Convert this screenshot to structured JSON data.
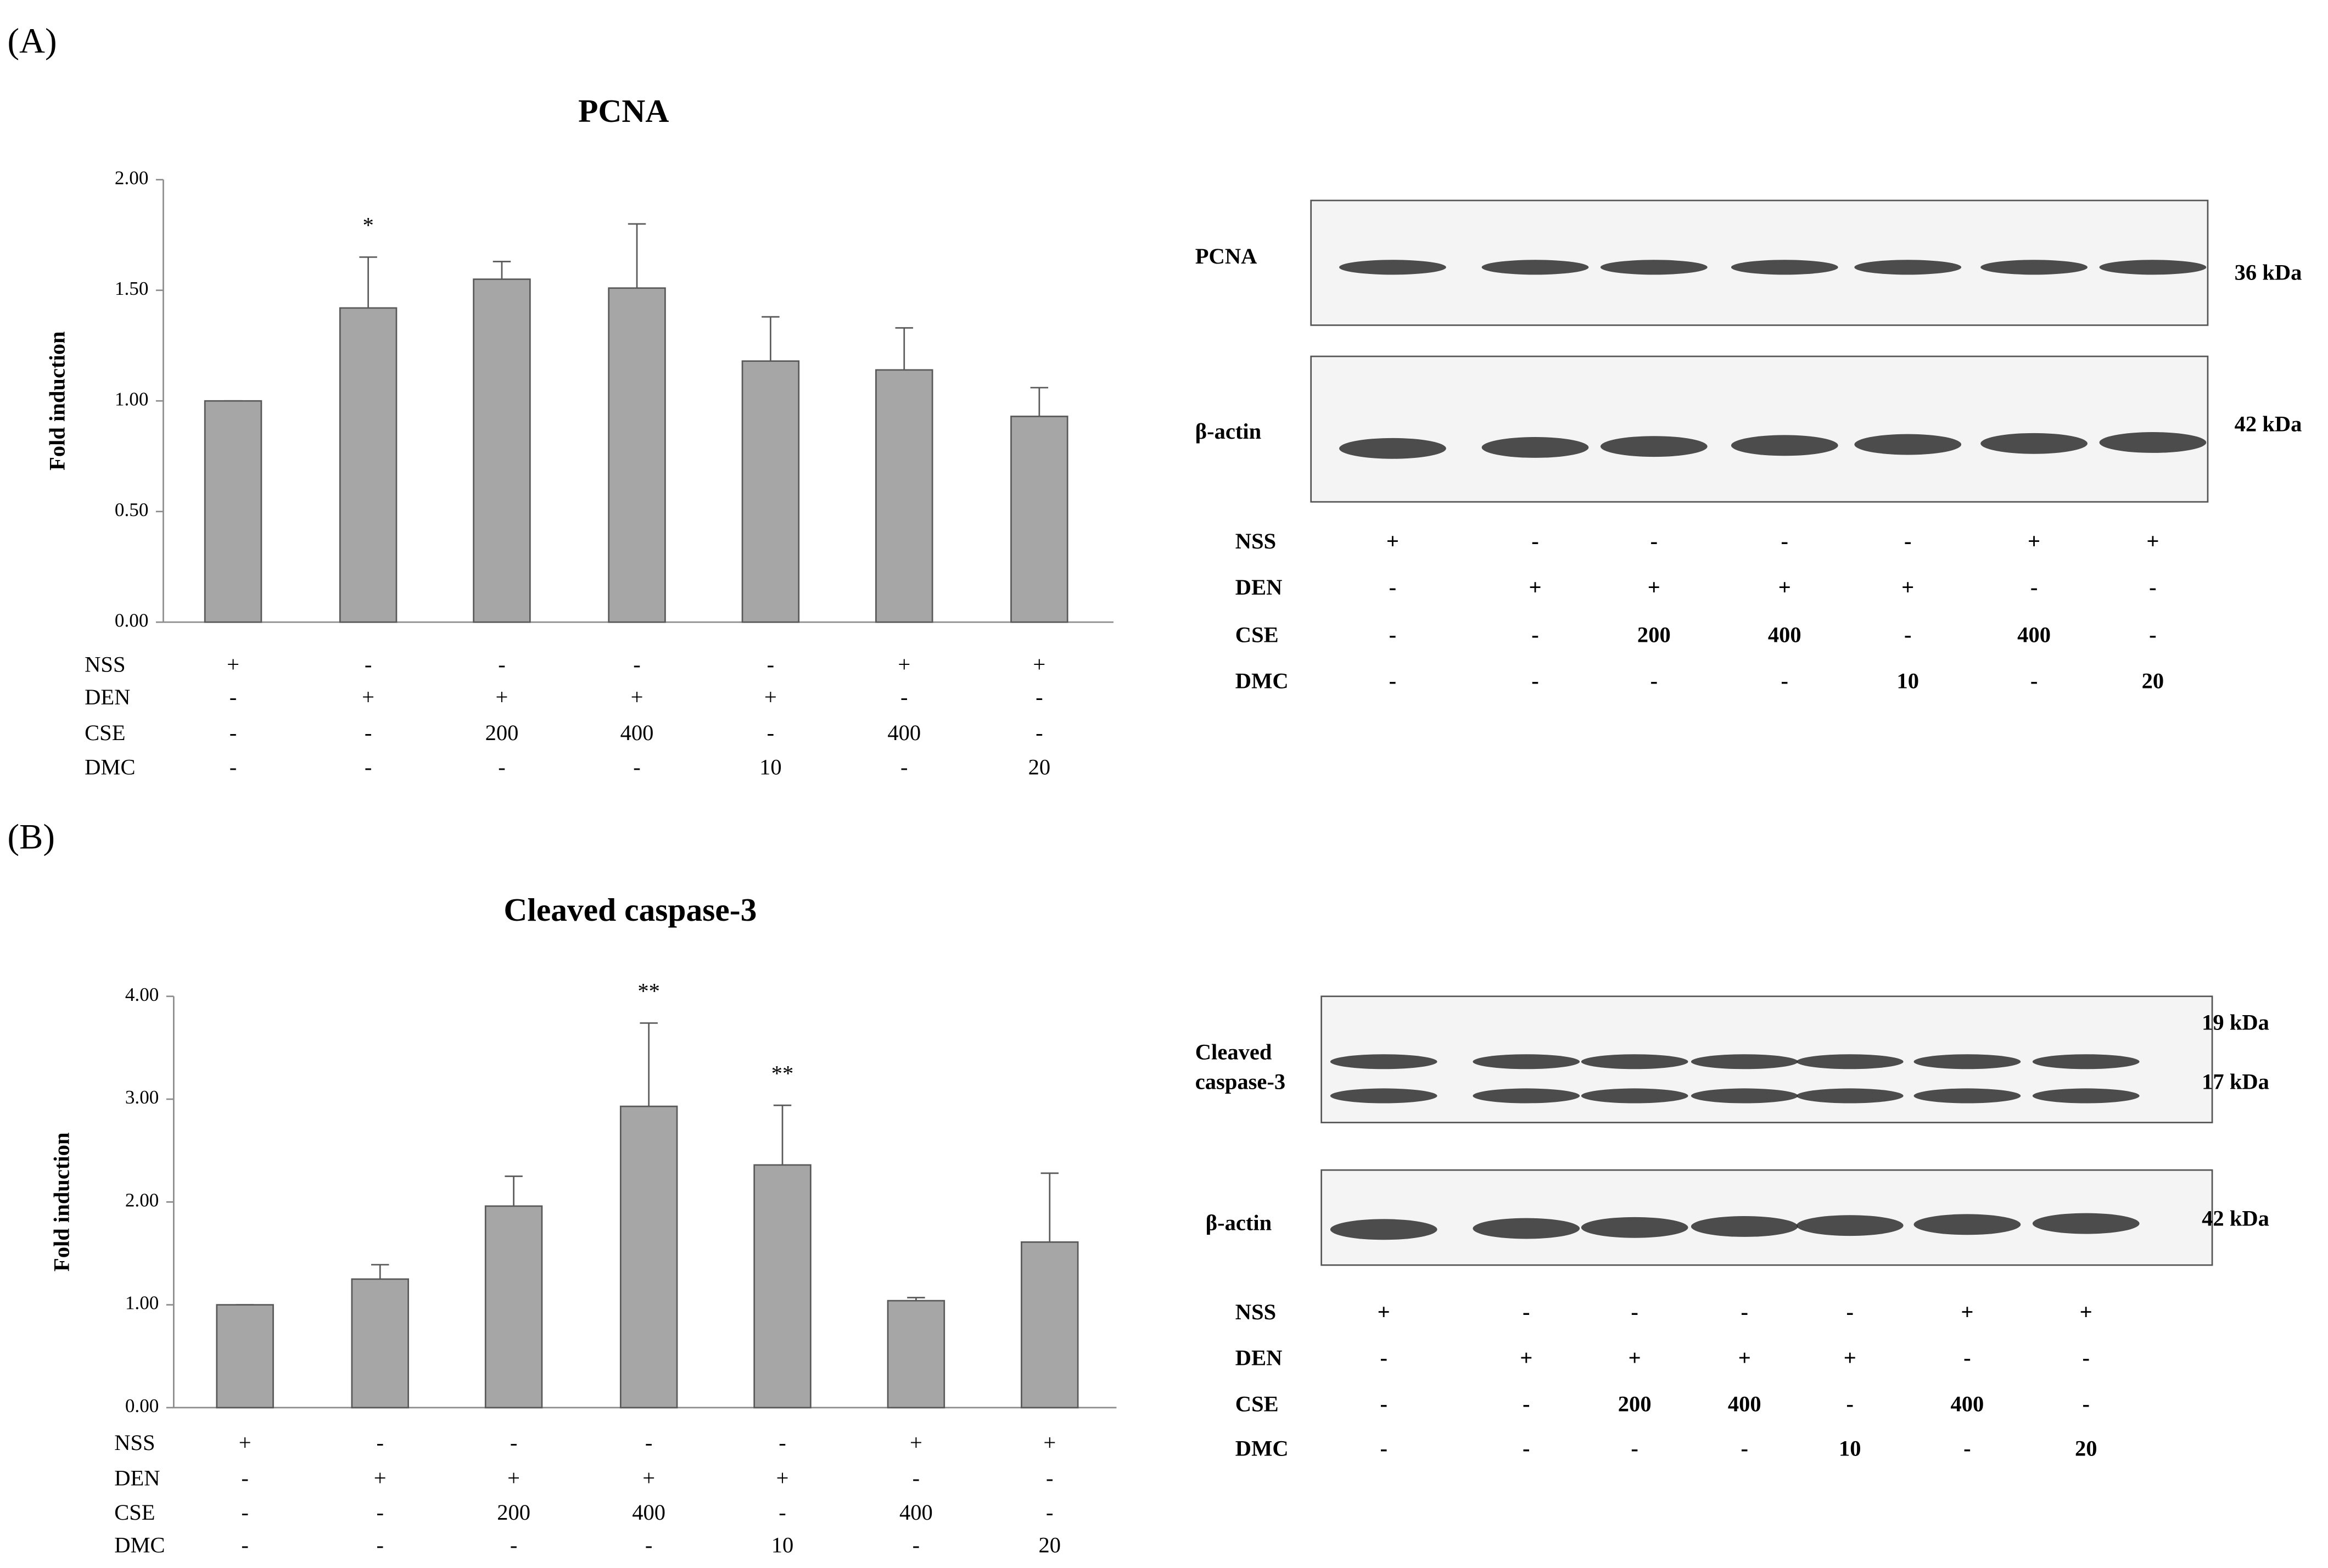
{
  "chart_data": [
    {
      "type": "bar",
      "panel": "(A)",
      "title": "PCNA",
      "y_label": "Fold induction",
      "values": [
        1.0,
        1.42,
        1.55,
        1.51,
        1.18,
        1.14,
        0.93
      ],
      "errors": [
        0,
        0.23,
        0.08,
        0.29,
        0.2,
        0.19,
        0.13
      ],
      "significance": [
        null,
        "*",
        null,
        null,
        null,
        null,
        null
      ],
      "color": "#a6a6a6",
      "ylim": [
        0,
        2
      ],
      "yticks": [
        {
          "value": 0,
          "label": "0.00"
        },
        {
          "value": 0.5,
          "label": "0.50"
        },
        {
          "value": 1,
          "label": "1.00"
        },
        {
          "value": 1.5,
          "label": "1.50"
        },
        {
          "value": 2,
          "label": "2.00"
        }
      ],
      "conditions": [
        {
          "name": "NSS",
          "values": [
            "+",
            "-",
            "-",
            "-",
            "-",
            "+",
            "+"
          ]
        },
        {
          "name": "DEN",
          "values": [
            "-",
            "+",
            "+",
            "+",
            "+",
            "-",
            "-"
          ]
        },
        {
          "name": "CSE",
          "values": [
            "-",
            "-",
            "200",
            "400",
            "-",
            "400",
            "-"
          ]
        },
        {
          "name": "DMC",
          "values": [
            "-",
            "-",
            "-",
            "-",
            "10",
            "-",
            "20"
          ]
        }
      ]
    },
    {
      "type": "bar",
      "panel": "(B)",
      "title": "Cleaved caspase-3",
      "y_label": "Fold induction",
      "values": [
        1.0,
        1.25,
        1.96,
        2.93,
        2.36,
        1.04,
        1.61
      ],
      "errors": [
        0,
        0.14,
        0.29,
        0.81,
        0.58,
        0.03,
        0.67
      ],
      "significance": [
        null,
        null,
        null,
        "**",
        "**",
        null,
        null
      ],
      "color": "#a6a6a6",
      "ylim": [
        0,
        4
      ],
      "yticks": [
        {
          "value": 0,
          "label": "0.00"
        },
        {
          "value": 1,
          "label": "1.00"
        },
        {
          "value": 2,
          "label": "2.00"
        },
        {
          "value": 3,
          "label": "3.00"
        },
        {
          "value": 4,
          "label": "4.00"
        }
      ],
      "conditions": [
        {
          "name": "NSS",
          "values": [
            "+",
            "-",
            "-",
            "-",
            "-",
            "+",
            "+"
          ]
        },
        {
          "name": "DEN",
          "values": [
            "-",
            "+",
            "+",
            "+",
            "+",
            "-",
            "-"
          ]
        },
        {
          "name": "CSE",
          "values": [
            "-",
            "-",
            "200",
            "400",
            "-",
            "400",
            "-"
          ]
        },
        {
          "name": "DMC",
          "values": [
            "-",
            "-",
            "-",
            "-",
            "10",
            "-",
            "20"
          ]
        }
      ]
    }
  ],
  "blots": [
    {
      "rows": [
        {
          "label": [
            "PCNA"
          ],
          "kda": [
            "36 kDa"
          ]
        },
        {
          "label": [
            "β-actin"
          ],
          "kda": [
            "42 kDa"
          ]
        }
      ],
      "conditions": [
        {
          "name": "NSS",
          "values": [
            "+",
            "-",
            "-",
            "-",
            "-",
            "+",
            "+"
          ]
        },
        {
          "name": "DEN",
          "values": [
            "-",
            "+",
            "+",
            "+",
            "+",
            "-",
            "-"
          ]
        },
        {
          "name": "CSE",
          "values": [
            "-",
            "-",
            "200",
            "400",
            "-",
            "400",
            "-"
          ]
        },
        {
          "name": "DMC",
          "values": [
            "-",
            "-",
            "-",
            "-",
            "10",
            "-",
            "20"
          ]
        }
      ]
    },
    {
      "rows": [
        {
          "label": [
            "Cleaved",
            "caspase-3"
          ],
          "kda": [
            "19 kDa",
            "17 kDa"
          ]
        },
        {
          "label": [
            "β-actin"
          ],
          "kda": [
            "42 kDa"
          ]
        }
      ],
      "conditions": [
        {
          "name": "NSS",
          "values": [
            "+",
            "-",
            "-",
            "-",
            "-",
            "+",
            "+"
          ]
        },
        {
          "name": "DEN",
          "values": [
            "-",
            "+",
            "+",
            "+",
            "+",
            "-",
            "-"
          ]
        },
        {
          "name": "CSE",
          "values": [
            "-",
            "-",
            "200",
            "400",
            "-",
            "400",
            "-"
          ]
        },
        {
          "name": "DMC",
          "values": [
            "-",
            "-",
            "-",
            "-",
            "10",
            "-",
            "20"
          ]
        }
      ]
    }
  ]
}
